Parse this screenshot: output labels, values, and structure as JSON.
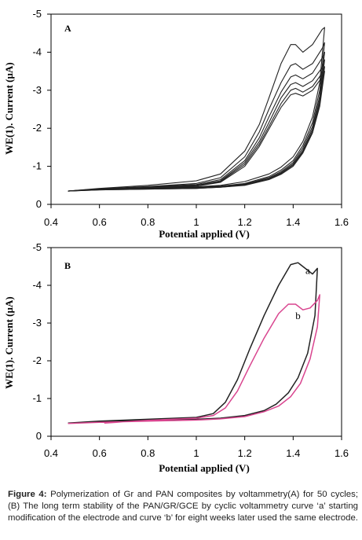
{
  "chart_data": [
    {
      "type": "line",
      "panel_label": "A",
      "xlabel": "Potential applied (V)",
      "ylabel": "WE(1). Current (µA)",
      "xlim": [
        0.4,
        1.6
      ],
      "ylim": [
        0,
        -5
      ],
      "x_ticks": [
        "0.4",
        "0.6",
        "0.8",
        "1",
        "1.2",
        "1.4",
        "1.6"
      ],
      "y_ticks": [
        "-5",
        "-4",
        "-3",
        "-2",
        "-1",
        "0"
      ],
      "grid": false,
      "line_color": "#222222",
      "series": [
        {
          "forward_x": [
            0.47,
            0.6,
            0.8,
            1.0,
            1.1,
            1.2,
            1.26,
            1.3,
            1.35,
            1.39,
            1.41,
            1.44,
            1.48,
            1.52,
            1.53
          ],
          "forward_y": [
            -0.35,
            -0.42,
            -0.5,
            -0.62,
            -0.8,
            -1.4,
            -2.1,
            -2.8,
            -3.7,
            -4.2,
            -4.2,
            -4.0,
            -4.2,
            -4.6,
            -4.65
          ],
          "return_x": [
            1.53,
            1.51,
            1.48,
            1.44,
            1.4,
            1.35,
            1.3,
            1.2,
            1.1,
            1.0,
            0.8,
            0.6,
            0.47
          ],
          "return_y": [
            -4.65,
            -3.2,
            -2.3,
            -1.65,
            -1.25,
            -0.98,
            -0.8,
            -0.6,
            -0.5,
            -0.46,
            -0.44,
            -0.4,
            -0.35
          ]
        },
        {
          "forward_x": [
            0.47,
            0.6,
            0.8,
            1.0,
            1.1,
            1.2,
            1.26,
            1.3,
            1.35,
            1.39,
            1.41,
            1.44,
            1.48,
            1.52,
            1.53
          ],
          "forward_y": [
            -0.35,
            -0.41,
            -0.47,
            -0.55,
            -0.7,
            -1.25,
            -1.9,
            -2.5,
            -3.2,
            -3.65,
            -3.7,
            -3.55,
            -3.7,
            -4.1,
            -4.25
          ],
          "return_x": [
            1.53,
            1.51,
            1.48,
            1.44,
            1.4,
            1.35,
            1.3,
            1.2,
            1.1,
            1.0,
            0.8,
            0.6,
            0.47
          ],
          "return_y": [
            -4.25,
            -3.0,
            -2.15,
            -1.55,
            -1.15,
            -0.9,
            -0.73,
            -0.55,
            -0.48,
            -0.45,
            -0.43,
            -0.4,
            -0.35
          ]
        },
        {
          "forward_x": [
            0.47,
            0.6,
            0.8,
            1.0,
            1.1,
            1.2,
            1.26,
            1.3,
            1.35,
            1.39,
            1.41,
            1.44,
            1.48,
            1.52,
            1.53
          ],
          "forward_y": [
            -0.35,
            -0.4,
            -0.46,
            -0.52,
            -0.65,
            -1.15,
            -1.75,
            -2.3,
            -2.95,
            -3.35,
            -3.4,
            -3.3,
            -3.45,
            -3.85,
            -4.0
          ],
          "return_x": [
            1.53,
            1.51,
            1.48,
            1.44,
            1.4,
            1.35,
            1.3,
            1.2,
            1.1,
            1.0,
            0.8,
            0.6,
            0.47
          ],
          "return_y": [
            -4.0,
            -2.85,
            -2.05,
            -1.48,
            -1.1,
            -0.86,
            -0.7,
            -0.53,
            -0.47,
            -0.44,
            -0.42,
            -0.39,
            -0.35
          ]
        },
        {
          "forward_x": [
            0.47,
            0.6,
            0.8,
            1.0,
            1.1,
            1.2,
            1.26,
            1.3,
            1.35,
            1.39,
            1.41,
            1.44,
            1.48,
            1.52,
            1.53
          ],
          "forward_y": [
            -0.35,
            -0.4,
            -0.45,
            -0.5,
            -0.62,
            -1.1,
            -1.65,
            -2.15,
            -2.8,
            -3.15,
            -3.2,
            -3.1,
            -3.25,
            -3.6,
            -3.8
          ],
          "return_x": [
            1.53,
            1.51,
            1.48,
            1.44,
            1.4,
            1.35,
            1.3,
            1.2,
            1.1,
            1.0,
            0.8,
            0.6,
            0.47
          ],
          "return_y": [
            -3.8,
            -2.75,
            -1.98,
            -1.42,
            -1.06,
            -0.83,
            -0.68,
            -0.52,
            -0.46,
            -0.43,
            -0.41,
            -0.39,
            -0.35
          ]
        },
        {
          "forward_x": [
            0.47,
            0.6,
            0.8,
            1.0,
            1.1,
            1.2,
            1.26,
            1.3,
            1.35,
            1.39,
            1.41,
            1.44,
            1.48,
            1.52,
            1.53
          ],
          "forward_y": [
            -0.35,
            -0.39,
            -0.44,
            -0.49,
            -0.6,
            -1.05,
            -1.58,
            -2.05,
            -2.65,
            -3.0,
            -3.05,
            -2.95,
            -3.1,
            -3.45,
            -3.62
          ],
          "return_x": [
            1.53,
            1.51,
            1.48,
            1.44,
            1.4,
            1.35,
            1.3,
            1.2,
            1.1,
            1.0,
            0.8,
            0.6,
            0.47
          ],
          "return_y": [
            -3.62,
            -2.65,
            -1.92,
            -1.38,
            -1.03,
            -0.81,
            -0.66,
            -0.51,
            -0.45,
            -0.42,
            -0.4,
            -0.38,
            -0.35
          ]
        },
        {
          "forward_x": [
            0.47,
            0.6,
            0.8,
            1.0,
            1.1,
            1.2,
            1.26,
            1.3,
            1.35,
            1.39,
            1.41,
            1.44,
            1.48,
            1.52,
            1.53
          ],
          "forward_y": [
            -0.35,
            -0.39,
            -0.44,
            -0.48,
            -0.58,
            -1.0,
            -1.52,
            -1.98,
            -2.55,
            -2.88,
            -2.92,
            -2.85,
            -3.0,
            -3.35,
            -3.5
          ],
          "return_x": [
            1.53,
            1.51,
            1.48,
            1.44,
            1.4,
            1.35,
            1.3,
            1.2,
            1.1,
            1.0,
            0.8,
            0.6,
            0.47
          ],
          "return_y": [
            -3.5,
            -2.58,
            -1.88,
            -1.35,
            -1.0,
            -0.79,
            -0.65,
            -0.5,
            -0.45,
            -0.42,
            -0.4,
            -0.38,
            -0.35
          ]
        }
      ]
    },
    {
      "type": "line",
      "panel_label": "B",
      "xlabel": "Potential applied (V)",
      "ylabel": "WE(1). Current (µA)",
      "xlim": [
        0.4,
        1.6
      ],
      "ylim": [
        0,
        -5
      ],
      "x_ticks": [
        "0.4",
        "0.6",
        "0.8",
        "1",
        "1.2",
        "1.4",
        "1.6"
      ],
      "y_ticks": [
        "-5",
        "-4",
        "-3",
        "-2",
        "-1",
        "0"
      ],
      "grid": false,
      "series": [
        {
          "name": "a",
          "color": "#222222",
          "forward_x": [
            0.47,
            0.6,
            0.8,
            1.0,
            1.07,
            1.12,
            1.17,
            1.22,
            1.28,
            1.34,
            1.39,
            1.42,
            1.45,
            1.48,
            1.5
          ],
          "forward_y": [
            -0.35,
            -0.4,
            -0.45,
            -0.5,
            -0.6,
            -0.9,
            -1.5,
            -2.3,
            -3.2,
            -4.0,
            -4.55,
            -4.6,
            -4.45,
            -4.3,
            -4.45
          ],
          "return_x": [
            1.5,
            1.49,
            1.46,
            1.42,
            1.38,
            1.33,
            1.28,
            1.2,
            1.1,
            1.0,
            0.8,
            0.6,
            0.47
          ],
          "return_y": [
            -4.45,
            -3.2,
            -2.2,
            -1.55,
            -1.15,
            -0.85,
            -0.68,
            -0.55,
            -0.48,
            -0.45,
            -0.42,
            -0.39,
            -0.35
          ]
        },
        {
          "name": "b",
          "color": "#d9458f",
          "forward_x": [
            0.62,
            0.8,
            1.0,
            1.07,
            1.12,
            1.17,
            1.22,
            1.28,
            1.34,
            1.38,
            1.41,
            1.44,
            1.47,
            1.5,
            1.51
          ],
          "forward_y": [
            -0.35,
            -0.42,
            -0.48,
            -0.55,
            -0.75,
            -1.2,
            -1.85,
            -2.6,
            -3.25,
            -3.5,
            -3.5,
            -3.35,
            -3.4,
            -3.6,
            -3.75
          ],
          "return_x": [
            1.51,
            1.5,
            1.47,
            1.43,
            1.39,
            1.34,
            1.28,
            1.2,
            1.1,
            1.0,
            0.8,
            0.6,
            0.47
          ],
          "return_y": [
            -3.75,
            -2.9,
            -2.05,
            -1.4,
            -1.05,
            -0.8,
            -0.65,
            -0.52,
            -0.46,
            -0.43,
            -0.4,
            -0.37,
            -0.34
          ]
        }
      ],
      "annotations": [
        {
          "text": "a",
          "x": 1.46,
          "y": -4.3
        },
        {
          "text": "b",
          "x": 1.42,
          "y": -3.1
        }
      ]
    }
  ],
  "caption": {
    "label": "Figure 4:",
    "text": " Polymerization of Gr and PAN composites by voltammetry(A) for 50 cycles; (B) The long term stability of the PAN/GR/GCE by cyclic voltammetry curve ‘a’ starting modification of the electrode and curve ‘b’ for eight weeks later used the same electrode."
  }
}
